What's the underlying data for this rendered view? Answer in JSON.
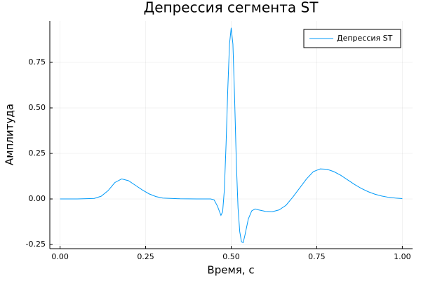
{
  "chart_data": {
    "type": "line",
    "title": "Депрессия сегмента ST",
    "x_label": "Время, с",
    "y_label": "Амплитуда",
    "x": [
      0,
      0.05,
      0.1,
      0.12,
      0.14,
      0.16,
      0.18,
      0.2,
      0.22,
      0.24,
      0.26,
      0.28,
      0.3,
      0.35,
      0.4,
      0.44,
      0.45,
      0.46,
      0.47,
      0.475,
      0.48,
      0.485,
      0.49,
      0.495,
      0.5,
      0.505,
      0.51,
      0.515,
      0.52,
      0.525,
      0.53,
      0.535,
      0.54,
      0.55,
      0.56,
      0.57,
      0.58,
      0.6,
      0.62,
      0.64,
      0.66,
      0.68,
      0.7,
      0.72,
      0.74,
      0.76,
      0.78,
      0.8,
      0.82,
      0.84,
      0.86,
      0.88,
      0.9,
      0.92,
      0.94,
      0.96,
      0.98,
      1.0
    ],
    "series": [
      {
        "name": "Депрессия ST",
        "color": "#009af9",
        "values": [
          0,
          0,
          0.003,
          0.015,
          0.045,
          0.09,
          0.11,
          0.1,
          0.075,
          0.05,
          0.028,
          0.013,
          0.005,
          0.001,
          0,
          0,
          -0.005,
          -0.04,
          -0.09,
          -0.07,
          0.05,
          0.3,
          0.6,
          0.85,
          0.94,
          0.85,
          0.55,
          0.2,
          -0.05,
          -0.18,
          -0.235,
          -0.24,
          -0.2,
          -0.11,
          -0.065,
          -0.055,
          -0.06,
          -0.068,
          -0.07,
          -0.06,
          -0.035,
          0.01,
          0.06,
          0.11,
          0.15,
          0.165,
          0.163,
          0.15,
          0.13,
          0.105,
          0.08,
          0.058,
          0.04,
          0.026,
          0.016,
          0.009,
          0.005,
          0.002
        ]
      }
    ],
    "xlim": [
      -0.03,
      1.03
    ],
    "ylim": [
      -0.273,
      0.977
    ],
    "xticks": [
      {
        "value": 0,
        "label": "0.00"
      },
      0.25,
      {
        "value": 0.5,
        "label": "0.50"
      },
      0.75,
      {
        "value": 1,
        "label": "1.00"
      }
    ],
    "yticks": [
      -0.25,
      {
        "value": 0,
        "label": "0.00"
      },
      0.25,
      {
        "value": 0.5,
        "label": "0.50"
      },
      0.75
    ],
    "grid": true,
    "legend": "top-right"
  }
}
